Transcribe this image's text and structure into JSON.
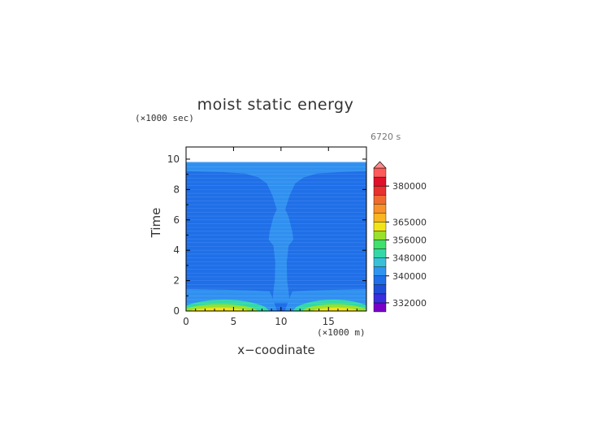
{
  "chart_data": {
    "type": "heatmap",
    "title": "moist static energy",
    "xlabel": "x−coodinate",
    "ylabel": "Time",
    "x_unit": "(×1000 m)",
    "y_unit": "(×1000 sec)",
    "time_stamp": "6720 s",
    "xlim": [
      0,
      19
    ],
    "ylim": [
      0,
      10.8
    ],
    "x_ticks": [
      "0",
      "5",
      "10",
      "15"
    ],
    "y_ticks": [
      "0",
      "2",
      "4",
      "6",
      "8",
      "10"
    ],
    "data_end_time": 9.8,
    "colorbar": {
      "tick_labels": [
        "332000",
        "340000",
        "348000",
        "356000",
        "365000",
        "380000"
      ],
      "colors": [
        "#7a00c8",
        "#3a2ee0",
        "#1f4fd8",
        "#1f6fe8",
        "#2f95ef",
        "#39c0d9",
        "#34d8a8",
        "#3fe06c",
        "#9ae02c",
        "#f3e41a",
        "#f9b522",
        "#f8902c",
        "#ef6a2f",
        "#e8302d",
        "#e0102a",
        "#ff5a5a",
        "#ff8a8a"
      ],
      "colors_note": "bottom to top, last one is the over-range arrow"
    },
    "regions": {
      "background": "#1f6fe8",
      "column": "#3090f0",
      "low_bands": [
        "#3090f0",
        "#34d8a8",
        "#9ae02c",
        "#f3e41a"
      ]
    }
  }
}
